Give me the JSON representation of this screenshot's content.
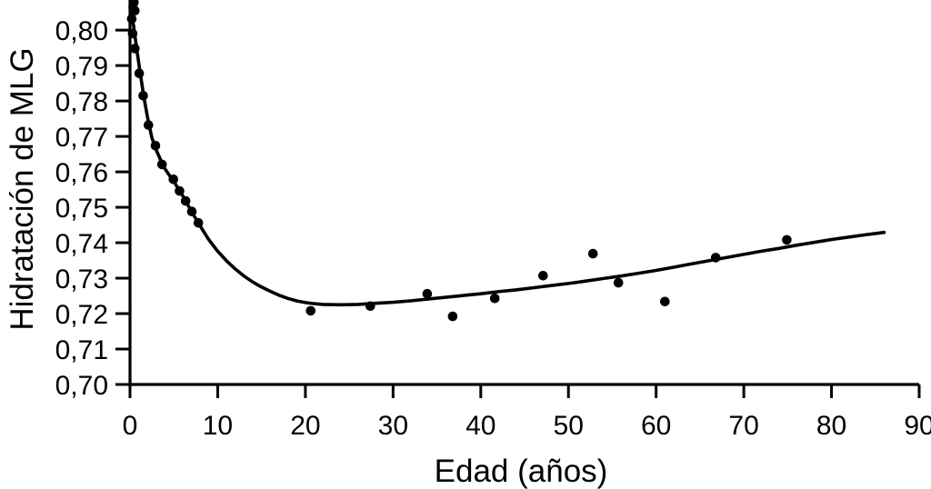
{
  "figure": {
    "background_color": "#ffffff",
    "ink_color": "#000000"
  },
  "chart_data": {
    "type": "scatter",
    "title": "",
    "xlabel": "Edad (años)",
    "ylabel": "Hidratación de MLG",
    "xlim": [
      0,
      90
    ],
    "ylim": [
      0.7,
      0.8085
    ],
    "grid": false,
    "legend": false,
    "marker_color": "#000000",
    "curve_color": "#000000",
    "x_tick_values": [
      0,
      10,
      20,
      30,
      40,
      50,
      60,
      70,
      80,
      90
    ],
    "x_tick_labels": [
      "0",
      "10",
      "20",
      "30",
      "40",
      "50",
      "60",
      "70",
      "80",
      "90"
    ],
    "y_tick_values": [
      0.7,
      0.71,
      0.72,
      0.73,
      0.74,
      0.75,
      0.76,
      0.77,
      0.78,
      0.79,
      0.8
    ],
    "y_tick_labels": [
      "0,70",
      "0,71",
      "0,72",
      "0,73",
      "0,74",
      "0,75",
      "0,76",
      "0,77",
      "0,78",
      "0,79",
      "0,80"
    ],
    "points": [
      [
        0.45,
        0.8078
      ],
      [
        0.55,
        0.8055
      ],
      [
        0.2,
        0.8032
      ],
      [
        0.3,
        0.799
      ],
      [
        0.55,
        0.7948
      ],
      [
        1.05,
        0.7878
      ],
      [
        1.5,
        0.7815
      ],
      [
        2.1,
        0.7732
      ],
      [
        2.9,
        0.7674
      ],
      [
        3.65,
        0.7621
      ],
      [
        4.95,
        0.7579
      ],
      [
        5.65,
        0.7546
      ],
      [
        6.35,
        0.7518
      ],
      [
        7.05,
        0.7488
      ],
      [
        7.8,
        0.7456
      ],
      [
        20.6,
        0.7208
      ],
      [
        27.4,
        0.7221
      ],
      [
        33.9,
        0.7256
      ],
      [
        36.8,
        0.7192
      ],
      [
        41.6,
        0.7243
      ],
      [
        47.1,
        0.7307
      ],
      [
        52.8,
        0.7369
      ],
      [
        55.7,
        0.7287
      ],
      [
        61.0,
        0.7234
      ],
      [
        66.8,
        0.7358
      ],
      [
        74.9,
        0.7408
      ]
    ],
    "fitted_curve": [
      [
        0,
        0.8065
      ],
      [
        0.4,
        0.8013
      ],
      [
        0.8,
        0.7941
      ],
      [
        1.2,
        0.7872
      ],
      [
        1.6,
        0.7809
      ],
      [
        2,
        0.7753
      ],
      [
        2.5,
        0.7696
      ],
      [
        3,
        0.7661
      ],
      [
        3.5,
        0.7633
      ],
      [
        4,
        0.7608
      ],
      [
        4.5,
        0.759
      ],
      [
        5,
        0.7573
      ],
      [
        5.5,
        0.7553
      ],
      [
        6,
        0.7533
      ],
      [
        6.5,
        0.7511
      ],
      [
        7,
        0.7489
      ],
      [
        7.5,
        0.7468
      ],
      [
        8,
        0.7447
      ],
      [
        9,
        0.7408
      ],
      [
        10,
        0.7376
      ],
      [
        11,
        0.7349
      ],
      [
        12,
        0.7326
      ],
      [
        13,
        0.7306
      ],
      [
        14,
        0.7289
      ],
      [
        15,
        0.7275
      ],
      [
        16,
        0.7263
      ],
      [
        17,
        0.7252
      ],
      [
        18,
        0.7243
      ],
      [
        19,
        0.7236
      ],
      [
        20,
        0.7231
      ],
      [
        21,
        0.7228
      ],
      [
        22,
        0.7226
      ],
      [
        24,
        0.7225
      ],
      [
        26,
        0.7226
      ],
      [
        28,
        0.7229
      ],
      [
        30,
        0.7232
      ],
      [
        32,
        0.7236
      ],
      [
        34,
        0.7241
      ],
      [
        36,
        0.7246
      ],
      [
        38,
        0.7251
      ],
      [
        40,
        0.7256
      ],
      [
        42,
        0.7262
      ],
      [
        44,
        0.7267
      ],
      [
        46,
        0.7273
      ],
      [
        48,
        0.7279
      ],
      [
        50,
        0.7285
      ],
      [
        52,
        0.7292
      ],
      [
        54,
        0.7299
      ],
      [
        56,
        0.7306
      ],
      [
        58,
        0.7314
      ],
      [
        60,
        0.7322
      ],
      [
        62,
        0.7331
      ],
      [
        64,
        0.734
      ],
      [
        66,
        0.7349
      ],
      [
        68,
        0.7358
      ],
      [
        70,
        0.7367
      ],
      [
        72,
        0.7376
      ],
      [
        74,
        0.7384
      ],
      [
        76,
        0.7393
      ],
      [
        78,
        0.7401
      ],
      [
        80,
        0.7409
      ],
      [
        82,
        0.7416
      ],
      [
        84,
        0.7423
      ],
      [
        86,
        0.7429
      ]
    ]
  }
}
